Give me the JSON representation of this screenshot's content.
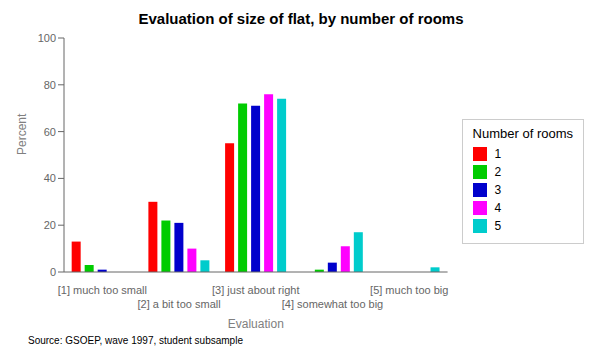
{
  "chart_data": {
    "type": "bar",
    "title": "Evaluation of size of flat, by number of rooms",
    "xlabel": "Evaluation",
    "ylabel": "Percent",
    "annotations": [
      "Source: GSOEP, wave 1997, student subsample"
    ],
    "categories": [
      "[1] much too small",
      "[2] a bit too small",
      "[3] just about right",
      "[4] somewhat too big",
      "[5] much too big"
    ],
    "legend_title": "Number of rooms",
    "legend": "right",
    "series": [
      {
        "name": "1",
        "color": "#FF0000",
        "values": [
          13,
          30,
          55,
          0,
          0
        ]
      },
      {
        "name": "2",
        "color": "#00CC00",
        "values": [
          3,
          22,
          72,
          1,
          0
        ]
      },
      {
        "name": "3",
        "color": "#0000CC",
        "values": [
          1,
          21,
          71,
          4,
          0
        ]
      },
      {
        "name": "4",
        "color": "#FF00FF",
        "values": [
          0,
          10,
          76,
          11,
          0
        ]
      },
      {
        "name": "5",
        "color": "#00CCCC",
        "values": [
          0,
          5,
          74,
          17,
          2
        ]
      }
    ],
    "ylim": [
      0,
      100
    ],
    "yticks": [
      0,
      20,
      40,
      60,
      80,
      100
    ],
    "grid": false
  }
}
